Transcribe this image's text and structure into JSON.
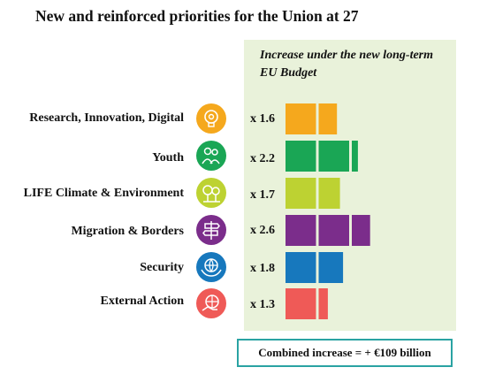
{
  "title": "New and reinforced priorities for the Union at 27",
  "panel_title": "Increase under the new long-term EU Budget",
  "footer": "Combined increase = + €109 billion",
  "chart_data": {
    "type": "bar",
    "categories": [
      "Research, Innovation, Digital",
      "Youth",
      "LIFE Climate & Environment",
      "Migration & Borders",
      "Security",
      "External Action"
    ],
    "multiplier_labels": [
      "x 1.6",
      "x 2.2",
      "x 1.7",
      "x 2.6",
      "x 1.8",
      "x 1.3"
    ],
    "values": [
      1.6,
      2.2,
      1.7,
      2.6,
      1.8,
      1.3
    ],
    "colors": [
      "#f5a81d",
      "#1aa655",
      "#bdd232",
      "#7b2d8b",
      "#1778bd",
      "#ef5a57"
    ],
    "icons": [
      "lightbulb-gear-icon",
      "people-icon",
      "trees-icon",
      "signpost-icon",
      "globe-hands-icon",
      "globe-hand-icon"
    ]
  }
}
